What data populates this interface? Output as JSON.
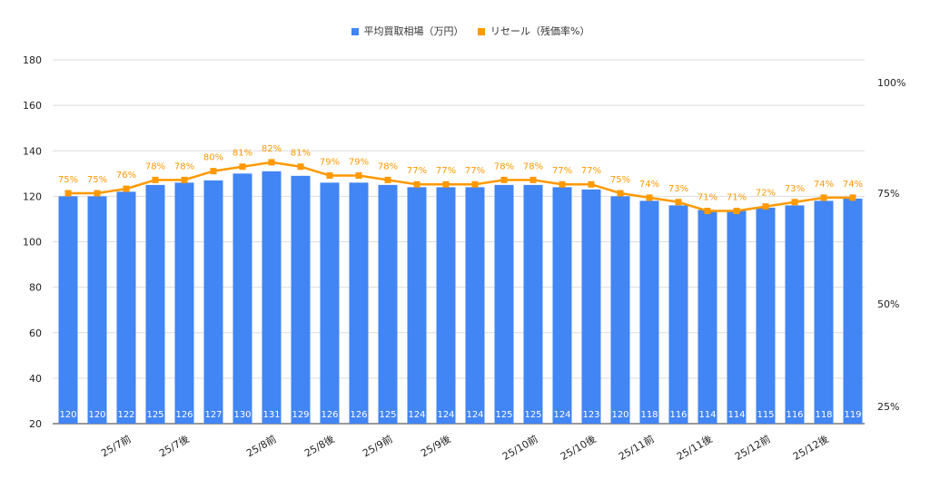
{
  "chart_data": {
    "type": "bar+line",
    "categories": [
      "",
      "",
      "25/7前",
      "",
      "25/7後",
      "",
      "",
      "25/8前",
      "",
      "25/8後",
      "",
      "25/9前",
      "",
      "25/9後",
      "",
      "",
      "25/10前",
      "",
      "25/10後",
      "",
      "25/11前",
      "",
      "25/11後",
      "",
      "25/12前",
      "",
      "25/12後",
      ""
    ],
    "series": [
      {
        "name": "平均買取相場（万円）",
        "type": "bar",
        "axis": "left",
        "color": "#4285f4",
        "values": [
          120,
          120,
          122,
          125,
          126,
          127,
          130,
          131,
          129,
          126,
          126,
          125,
          124,
          124,
          124,
          125,
          125,
          124,
          123,
          120,
          118,
          116,
          114,
          114,
          115,
          116,
          118,
          119
        ]
      },
      {
        "name": "リセール（残価率%）",
        "type": "line",
        "axis": "right",
        "color": "#ff9900",
        "values": [
          75,
          75,
          76,
          78,
          78,
          80,
          81,
          82,
          81,
          79,
          79,
          78,
          77,
          77,
          77,
          78,
          78,
          77,
          77,
          75,
          74,
          73,
          71,
          71,
          72,
          73,
          74,
          74
        ]
      }
    ],
    "left_axis": {
      "ylim": [
        20,
        180
      ],
      "ticks": [
        "20",
        "40",
        "60",
        "80",
        "100",
        "120",
        "140",
        "160",
        "180"
      ]
    },
    "right_axis": {
      "ticks": [
        "25%",
        "50%",
        "75%",
        "100%"
      ]
    },
    "legend_position": "top",
    "grid": true
  }
}
